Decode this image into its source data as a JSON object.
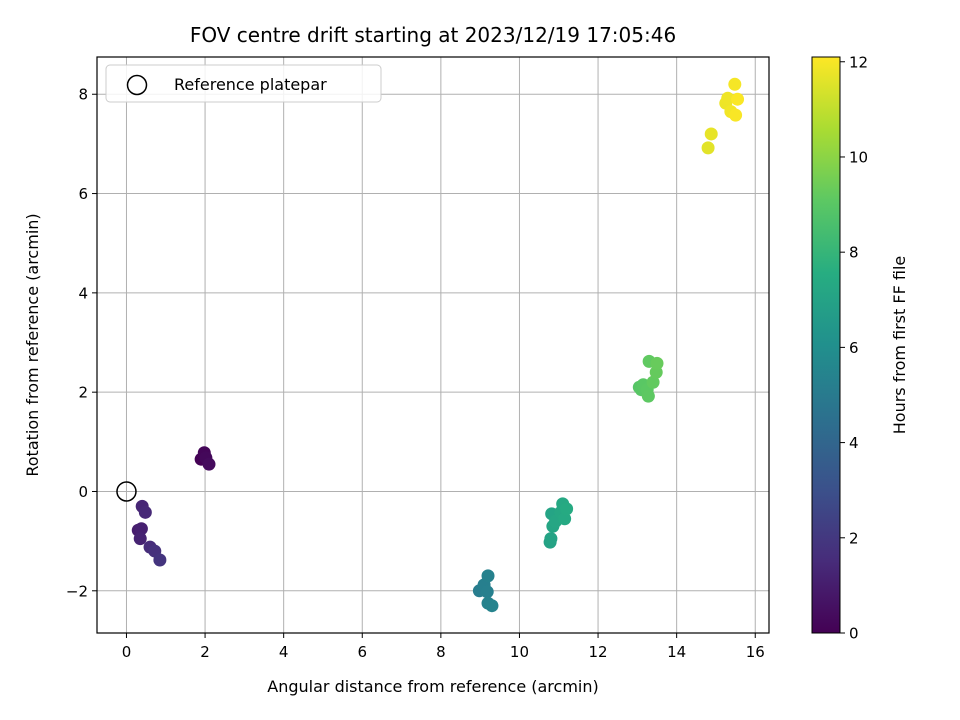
{
  "chart_data": {
    "type": "scatter",
    "title": "FOV centre drift starting at 2023/12/19 17:05:46",
    "xlabel": "Angular distance from reference (arcmin)",
    "ylabel": "Rotation from reference (arcmin)",
    "xlim": [
      -0.75,
      16.35
    ],
    "ylim": [
      -2.85,
      8.75
    ],
    "xticks": [
      0,
      2,
      4,
      6,
      8,
      10,
      12,
      14,
      16
    ],
    "yticks": [
      -2,
      0,
      2,
      4,
      6,
      8
    ],
    "grid": true,
    "legend": {
      "position": "top-left",
      "entries": [
        "Reference platepar"
      ]
    },
    "reference_point": {
      "x": 0,
      "y": 0
    },
    "colorbar": {
      "label": "Hours from first FF file",
      "range": [
        0,
        12.1
      ],
      "ticks": [
        0,
        2,
        4,
        6,
        8,
        10,
        12
      ],
      "colormap": "viridis"
    },
    "points": [
      {
        "x": 1.9,
        "y": 0.65,
        "h": 0.05
      },
      {
        "x": 1.98,
        "y": 0.78,
        "h": 0.15
      },
      {
        "x": 2.02,
        "y": 0.68,
        "h": 0.25
      },
      {
        "x": 2.1,
        "y": 0.55,
        "h": 0.35
      },
      {
        "x": 0.3,
        "y": -0.78,
        "h": 1.0
      },
      {
        "x": 0.38,
        "y": -0.75,
        "h": 1.1
      },
      {
        "x": 0.35,
        "y": -0.95,
        "h": 1.2
      },
      {
        "x": 0.4,
        "y": -0.3,
        "h": 1.3
      },
      {
        "x": 0.48,
        "y": -0.42,
        "h": 1.4
      },
      {
        "x": 0.6,
        "y": -1.12,
        "h": 1.55
      },
      {
        "x": 0.72,
        "y": -1.2,
        "h": 1.7
      },
      {
        "x": 0.85,
        "y": -1.38,
        "h": 1.85
      },
      {
        "x": 8.98,
        "y": -2.0,
        "h": 5.1
      },
      {
        "x": 9.1,
        "y": -1.88,
        "h": 5.2
      },
      {
        "x": 9.18,
        "y": -2.02,
        "h": 5.25
      },
      {
        "x": 9.2,
        "y": -1.7,
        "h": 5.3
      },
      {
        "x": 9.2,
        "y": -2.25,
        "h": 5.35
      },
      {
        "x": 9.3,
        "y": -2.3,
        "h": 5.4
      },
      {
        "x": 10.78,
        "y": -1.02,
        "h": 7.0
      },
      {
        "x": 10.8,
        "y": -0.95,
        "h": 7.05
      },
      {
        "x": 10.82,
        "y": -0.45,
        "h": 7.1
      },
      {
        "x": 10.85,
        "y": -0.7,
        "h": 7.15
      },
      {
        "x": 10.92,
        "y": -0.6,
        "h": 7.2
      },
      {
        "x": 11.05,
        "y": -0.42,
        "h": 7.25
      },
      {
        "x": 11.1,
        "y": -0.25,
        "h": 7.3
      },
      {
        "x": 11.15,
        "y": -0.55,
        "h": 7.35
      },
      {
        "x": 11.2,
        "y": -0.35,
        "h": 7.4
      },
      {
        "x": 13.05,
        "y": 2.1,
        "h": 8.9
      },
      {
        "x": 13.1,
        "y": 2.05,
        "h": 8.95
      },
      {
        "x": 13.15,
        "y": 2.15,
        "h": 9.0
      },
      {
        "x": 13.25,
        "y": 2.05,
        "h": 9.05
      },
      {
        "x": 13.28,
        "y": 1.92,
        "h": 9.1
      },
      {
        "x": 13.3,
        "y": 2.62,
        "h": 9.15
      },
      {
        "x": 13.4,
        "y": 2.2,
        "h": 9.2
      },
      {
        "x": 13.48,
        "y": 2.4,
        "h": 9.25
      },
      {
        "x": 13.5,
        "y": 2.58,
        "h": 9.3
      },
      {
        "x": 14.8,
        "y": 6.92,
        "h": 11.6
      },
      {
        "x": 14.88,
        "y": 7.2,
        "h": 11.7
      },
      {
        "x": 15.25,
        "y": 7.82,
        "h": 11.8
      },
      {
        "x": 15.3,
        "y": 7.92,
        "h": 11.85
      },
      {
        "x": 15.38,
        "y": 7.65,
        "h": 11.9
      },
      {
        "x": 15.48,
        "y": 8.2,
        "h": 11.95
      },
      {
        "x": 15.5,
        "y": 7.58,
        "h": 12.0
      },
      {
        "x": 15.55,
        "y": 7.9,
        "h": 12.05
      }
    ]
  }
}
